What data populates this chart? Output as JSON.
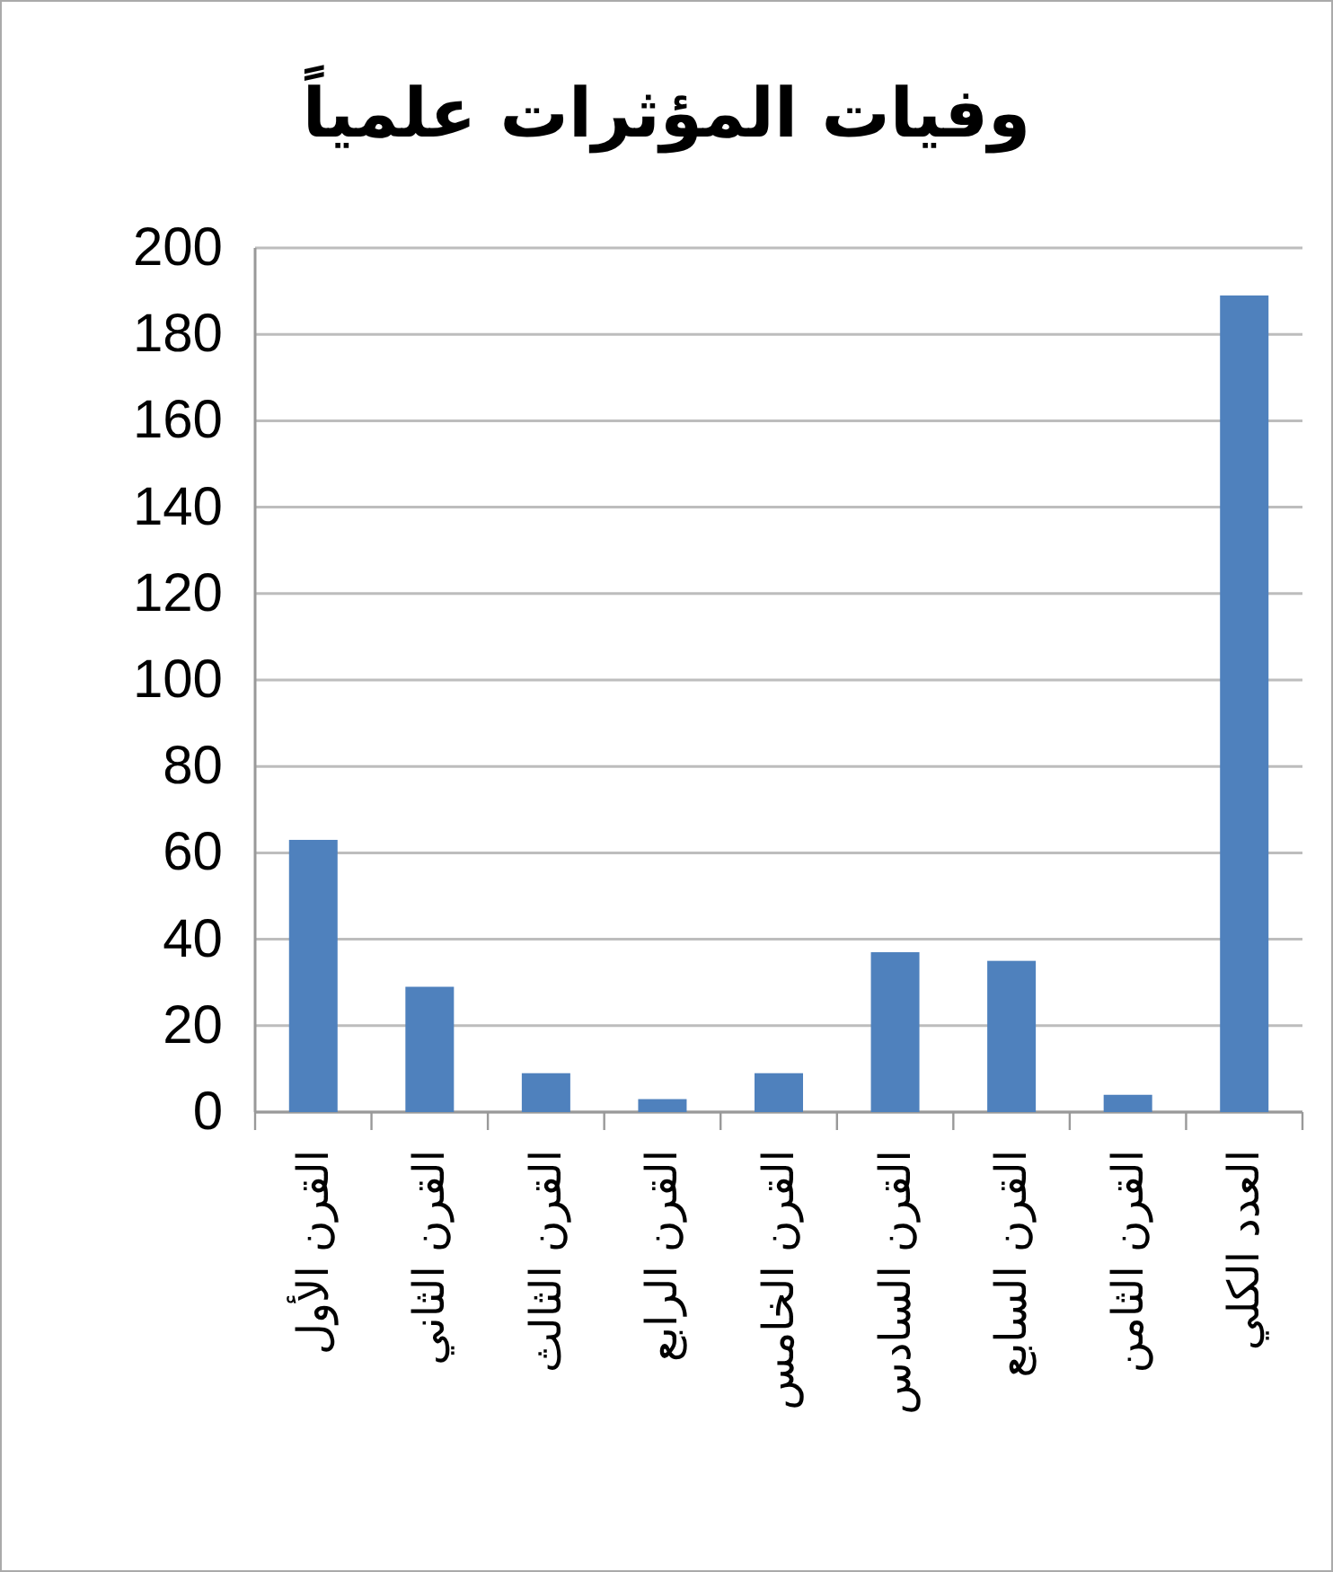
{
  "chart_data": {
    "type": "bar",
    "title": "وفيات المؤثرات علمياً",
    "categories": [
      "القرن الأول",
      "القرن الثاني",
      "القرن الثالث",
      "القرن الرابع",
      "القرن الخامس",
      "القرن السادس",
      "القرن السابع",
      "القرن الثامن",
      "العدد الكلي"
    ],
    "values": [
      63,
      29,
      9,
      3,
      9,
      37,
      35,
      4,
      189
    ],
    "color": "#4f81bd",
    "ylim": [
      0,
      200
    ],
    "yticks": [
      0,
      20,
      40,
      60,
      80,
      100,
      120,
      140,
      160,
      180,
      200
    ],
    "grid": "y"
  }
}
